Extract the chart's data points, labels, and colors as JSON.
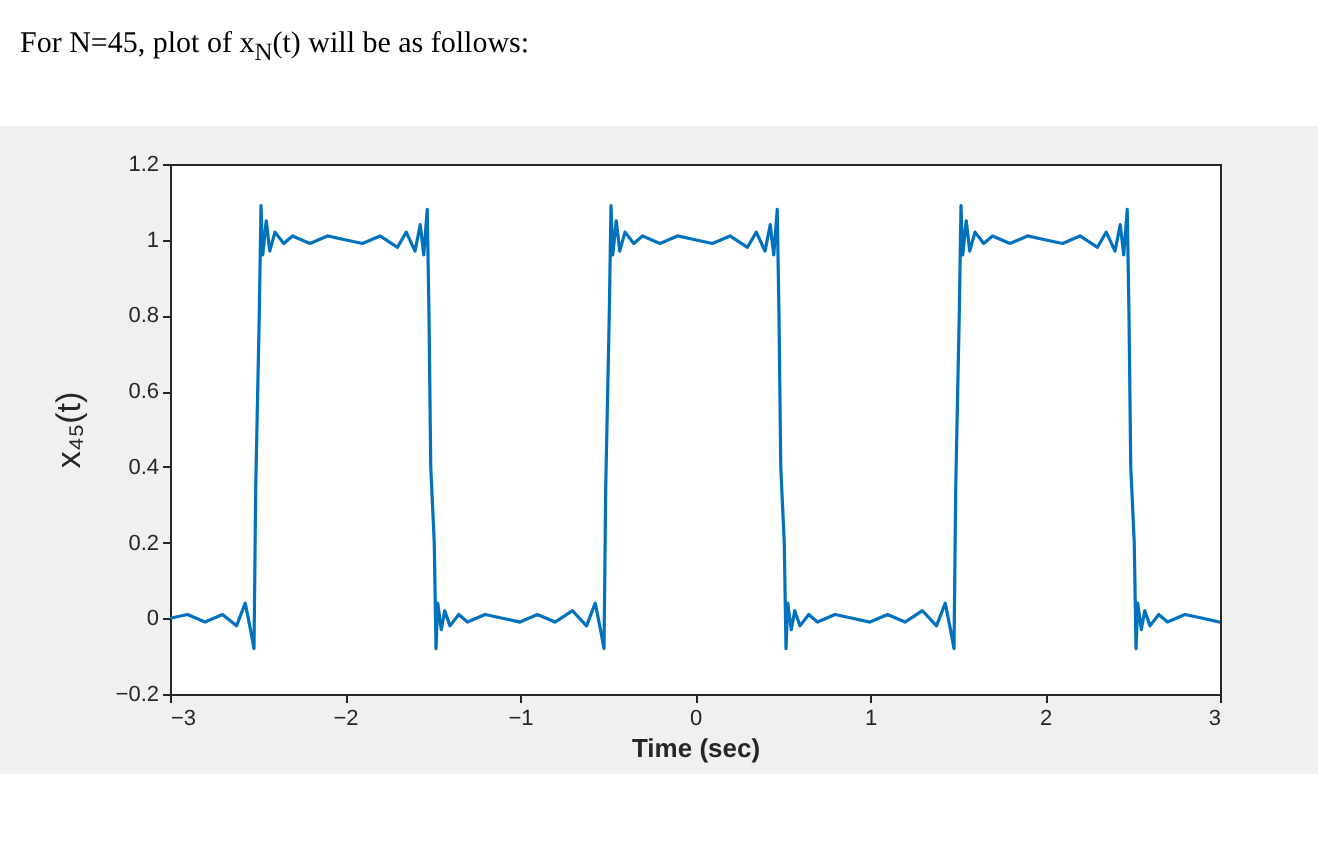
{
  "chart_data": {
    "type": "line",
    "title": "For N=45, plot of x$_{N}$(t) will be as follows:",
    "xlabel": "Time (sec)",
    "ylabel": "x₄₅(t)",
    "x": [
      -3,
      -2.9,
      -2.8,
      -2.7,
      -2.62,
      -2.57,
      -2.54,
      -2.52,
      -2.51,
      -2.49,
      -2.48,
      -2.47,
      -2.45,
      -2.43,
      -2.4,
      -2.35,
      -2.3,
      -2.2,
      -2.1,
      -2.0,
      -1.9,
      -1.8,
      -1.7,
      -1.65,
      -1.6,
      -1.57,
      -1.55,
      -1.53,
      -1.52,
      -1.51,
      -1.49,
      -1.48,
      -1.47,
      -1.45,
      -1.43,
      -1.4,
      -1.35,
      -1.3,
      -1.2,
      -1.1,
      -1.0,
      -0.9,
      -0.8,
      -0.7,
      -0.62,
      -0.57,
      -0.54,
      -0.52,
      -0.51,
      -0.49,
      -0.48,
      -0.47,
      -0.45,
      -0.43,
      -0.4,
      -0.35,
      -0.3,
      -0.2,
      -0.1,
      0,
      0.1,
      0.2,
      0.3,
      0.35,
      0.4,
      0.43,
      0.45,
      0.47,
      0.48,
      0.49,
      0.51,
      0.52,
      0.53,
      0.55,
      0.57,
      0.6,
      0.65,
      0.7,
      0.8,
      0.9,
      1.0,
      1.1,
      1.2,
      1.3,
      1.38,
      1.43,
      1.46,
      1.48,
      1.49,
      1.51,
      1.52,
      1.53,
      1.55,
      1.57,
      1.6,
      1.65,
      1.7,
      1.8,
      1.9,
      2.0,
      2.1,
      2.2,
      2.3,
      2.35,
      2.4,
      2.43,
      2.45,
      2.47,
      2.48,
      2.49,
      2.51,
      2.52,
      2.53,
      2.55,
      2.57,
      2.6,
      2.65,
      2.7,
      2.8,
      2.9,
      3.0
    ],
    "values": [
      0,
      0.01,
      -0.01,
      0.01,
      -0.02,
      0.04,
      -0.03,
      -0.08,
      0.35,
      0.8,
      1.09,
      0.96,
      1.05,
      0.97,
      1.02,
      0.99,
      1.01,
      0.99,
      1.01,
      1.0,
      0.99,
      1.01,
      0.98,
      1.02,
      0.97,
      1.04,
      0.96,
      1.08,
      0.8,
      0.4,
      0.2,
      -0.08,
      0.04,
      -0.03,
      0.02,
      -0.02,
      0.01,
      -0.01,
      0.01,
      0,
      -0.01,
      0.01,
      -0.01,
      0.02,
      -0.02,
      0.04,
      -0.03,
      -0.08,
      0.35,
      0.8,
      1.09,
      0.96,
      1.05,
      0.97,
      1.02,
      0.99,
      1.01,
      0.99,
      1.01,
      1.0,
      0.99,
      1.01,
      0.98,
      1.02,
      0.97,
      1.04,
      0.96,
      1.08,
      0.8,
      0.4,
      0.2,
      -0.08,
      0.04,
      -0.03,
      0.02,
      -0.02,
      0.01,
      -0.01,
      0.01,
      0,
      -0.01,
      0.01,
      -0.01,
      0.02,
      -0.02,
      0.04,
      -0.03,
      -0.08,
      0.35,
      0.8,
      1.09,
      0.96,
      1.05,
      0.97,
      1.02,
      0.99,
      1.01,
      0.99,
      1.01,
      1.0,
      0.99,
      1.01,
      0.98,
      1.02,
      0.97,
      1.04,
      0.96,
      1.08,
      0.8,
      0.4,
      0.2,
      -0.08,
      0.04,
      -0.03,
      0.02,
      -0.02,
      0.01,
      -0.01,
      0.01,
      0,
      -0.01
    ],
    "color": "#0072bd",
    "xlim": [
      -3,
      3
    ],
    "ylim": [
      -0.2,
      1.2
    ],
    "xticks": [
      -3,
      -2,
      -1,
      0,
      1,
      2,
      3
    ],
    "yticks": [
      -0.2,
      0,
      0.2,
      0.4,
      0.6,
      0.8,
      1,
      1.2
    ],
    "grid": false,
    "line_style": "solid"
  }
}
